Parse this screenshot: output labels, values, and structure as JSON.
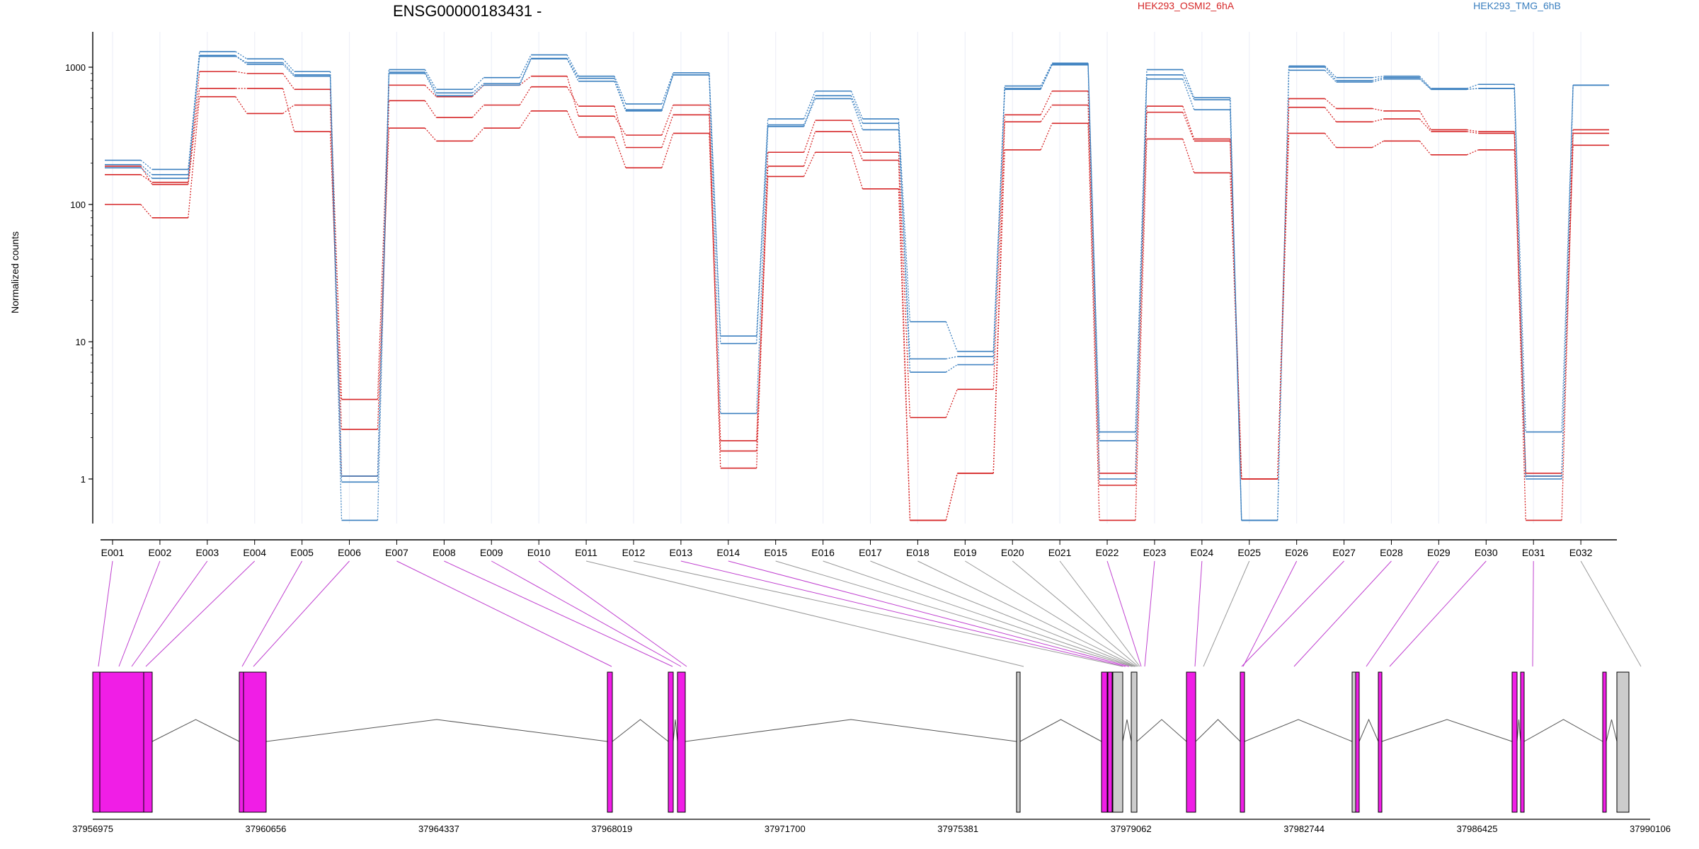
{
  "chart_data": {
    "type": "line",
    "title": "ENSG00000183431 -",
    "xlabel": "",
    "ylabel": "Normalized counts",
    "y_scale": "log",
    "ylim": [
      0.5,
      1800
    ],
    "y_ticks": [
      {
        "value": 1,
        "label": "1"
      },
      {
        "value": 10,
        "label": "10"
      },
      {
        "value": 100,
        "label": "100"
      },
      {
        "value": 1000,
        "label": "1000"
      }
    ],
    "grid": "vertical",
    "legend_position": "top",
    "colors": {
      "HEK293_OSMI2_6hA": "#d62728",
      "HEK293_TMG_6hB": "#3a7fbf",
      "included_exon": "#f01ee6",
      "other_exon": "#cccccc"
    },
    "categories": [
      "E001",
      "E002",
      "E003",
      "E004",
      "E005",
      "E006",
      "E007",
      "E008",
      "E009",
      "E010",
      "E011",
      "E012",
      "E013",
      "E014",
      "E015",
      "E016",
      "E017",
      "E018",
      "E019",
      "E020",
      "E021",
      "E022",
      "E023",
      "E024",
      "E025",
      "E026",
      "E027",
      "E028",
      "E029",
      "E030",
      "E031",
      "E032"
    ],
    "legend": [
      {
        "name": "HEK293_OSMI2_6hA",
        "color": "#d62728"
      },
      {
        "name": "HEK293_TMG_6hB",
        "color": "#3a7fbf"
      }
    ],
    "series": [
      {
        "group": "HEK293_OSMI2_6hA",
        "values": [
          165,
          145,
          930,
          900,
          690,
          3.8,
          740,
          610,
          740,
          860,
          440,
          320,
          530,
          1.6,
          240,
          410,
          240,
          2.8,
          4.5,
          450,
          670,
          1.1,
          520,
          300,
          1.0,
          590,
          500,
          480,
          350,
          340,
          1.1,
          350
        ]
      },
      {
        "group": "HEK293_OSMI2_6hA",
        "values": [
          100,
          80,
          610,
          460,
          530,
          1.05,
          570,
          430,
          530,
          720,
          520,
          260,
          450,
          1.2,
          190,
          340,
          210,
          0.5,
          1.1,
          400,
          530,
          0.9,
          470,
          290,
          1.0,
          510,
          400,
          420,
          340,
          330,
          0.5,
          330
        ]
      },
      {
        "group": "HEK293_OSMI2_6hA",
        "values": [
          190,
          140,
          700,
          700,
          340,
          2.3,
          360,
          290,
          360,
          480,
          310,
          185,
          330,
          1.9,
          160,
          240,
          130,
          0.5,
          1.1,
          250,
          390,
          0.5,
          300,
          170,
          1.0,
          330,
          260,
          290,
          230,
          250,
          1.05,
          270
        ]
      },
      {
        "group": "HEK293_TMG_6hB",
        "values": [
          210,
          180,
          1300,
          1150,
          930,
          1.05,
          960,
          690,
          840,
          1230,
          860,
          540,
          910,
          11.0,
          420,
          670,
          420,
          14.0,
          8.5,
          730,
          1070,
          2.2,
          960,
          600,
          0.5,
          1020,
          840,
          860,
          700,
          750,
          2.2,
          740
        ]
      },
      {
        "group": "HEK293_TMG_6hB",
        "values": [
          195,
          165,
          1200,
          1080,
          880,
          0.95,
          920,
          650,
          760,
          1160,
          830,
          490,
          880,
          9.7,
          380,
          620,
          390,
          7.5,
          7.8,
          700,
          1050,
          1.9,
          880,
          580,
          0.5,
          1000,
          800,
          840,
          690,
          700,
          1.05,
          740
        ]
      },
      {
        "group": "HEK293_TMG_6hB",
        "values": [
          185,
          155,
          1220,
          1050,
          860,
          0.5,
          900,
          620,
          740,
          1150,
          790,
          480,
          880,
          3.0,
          370,
          590,
          350,
          6.0,
          6.8,
          690,
          1040,
          1.0,
          820,
          490,
          0.5,
          950,
          780,
          820,
          690,
          700,
          1.0,
          740
        ]
      }
    ],
    "gene_model": {
      "coordinate_ticks": [
        "37956975",
        "37960656",
        "37964337",
        "37968019",
        "37971700",
        "37975381",
        "37979062",
        "37982744",
        "37986425",
        "37990106"
      ]
    }
  }
}
